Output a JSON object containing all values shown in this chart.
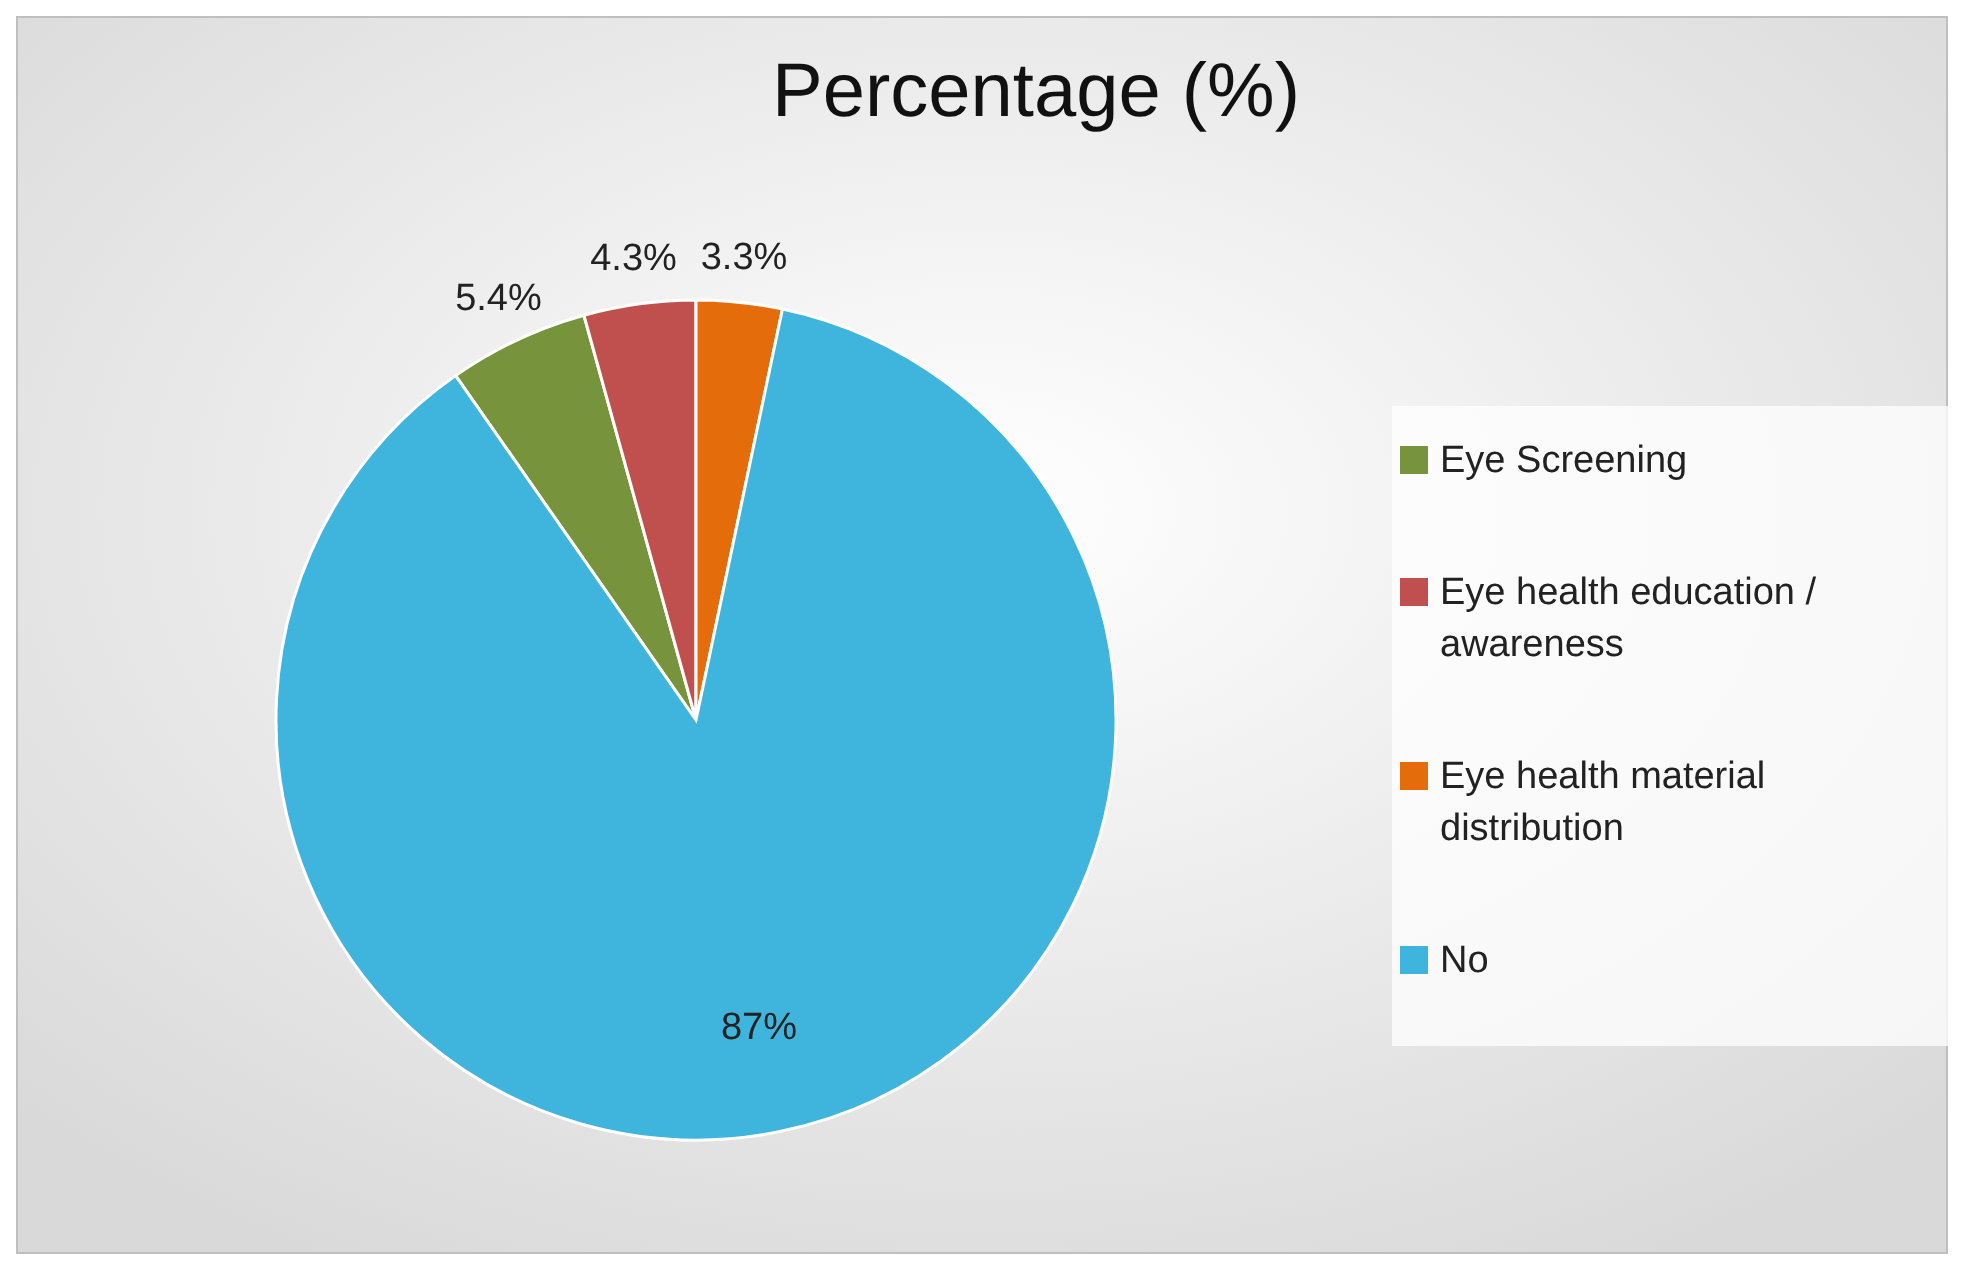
{
  "chart_data": {
    "type": "pie",
    "title": "Percentage (%)",
    "categories": [
      "Eye Screening",
      "Eye health education / awareness",
      "Eye health material distribution",
      "No"
    ],
    "values": [
      5.4,
      4.3,
      3.3,
      87
    ],
    "colors": [
      "#77933c",
      "#c0504d",
      "#e46c0a",
      "#3fb4dc"
    ],
    "value_labels": [
      "5.4%",
      "4.3%",
      "3.3%",
      "87%"
    ],
    "legend": "right"
  }
}
